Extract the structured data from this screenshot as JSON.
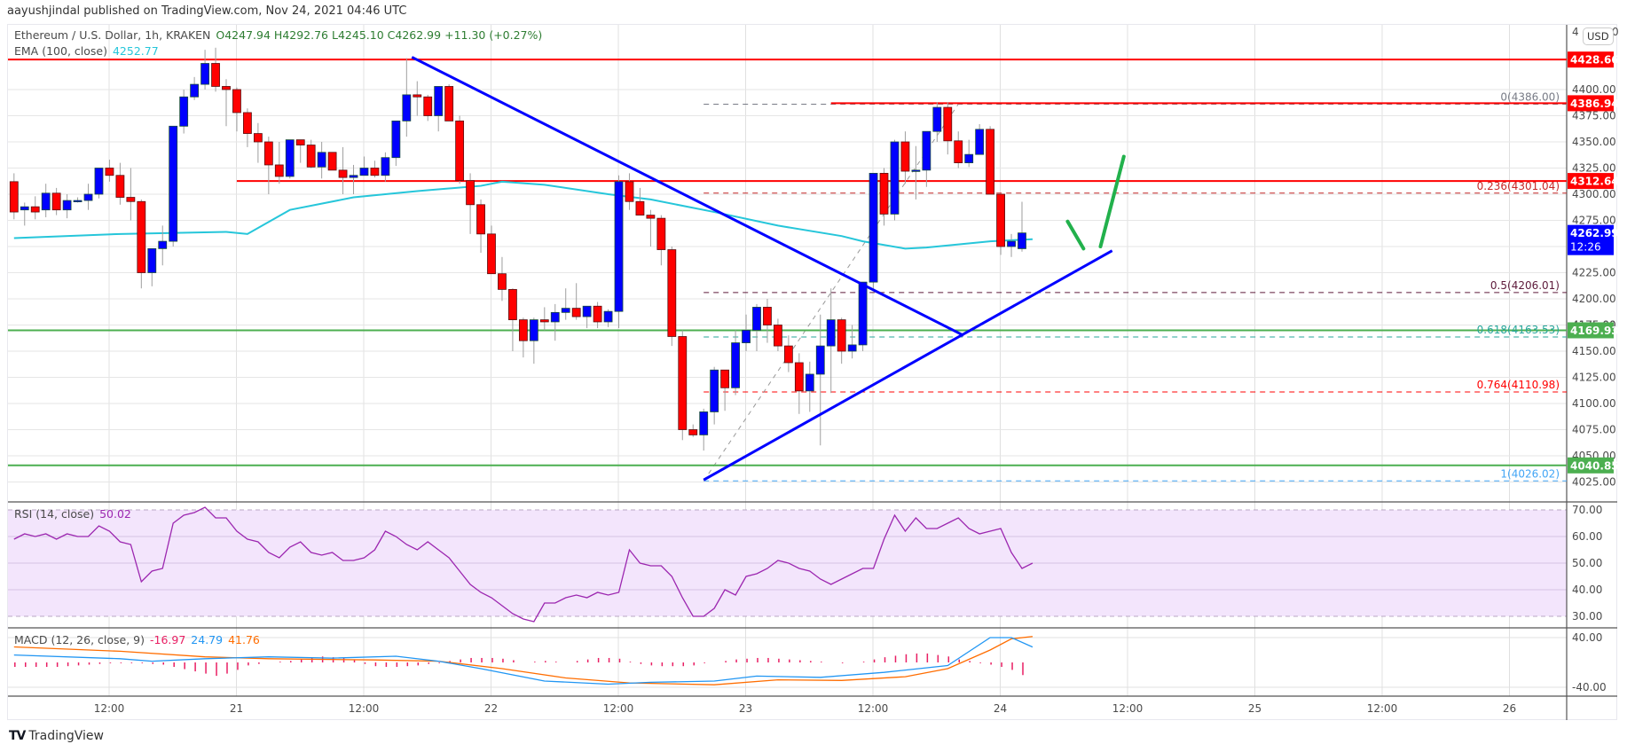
{
  "header": {
    "published": "aayushjindal published on TradingView.com, Nov 24, 2021 04:46 UTC"
  },
  "legend": {
    "symbol": "Ethereum / U.S. Dollar, 1h, KRAKEN",
    "open": "O4247.94",
    "high": "H4292.76",
    "low": "L4245.10",
    "close": "C4262.99",
    "change": "+11.30 (+0.27%)",
    "ema_label": "EMA (100, close)",
    "ema_value": "4252.77",
    "rsi_label": "RSI (14, close)",
    "rsi_value": "50.02",
    "macd_label": "MACD (12, 26, close, 9)",
    "macd_hist": "-16.97",
    "macd_line": "24.79",
    "macd_signal": "41.76"
  },
  "price_axis": {
    "currency_button": "USD",
    "currency_prefix": "4",
    "currency_suffix": "0",
    "ticks": [
      "4400.00",
      "4375.00",
      "4350.00",
      "4325.00",
      "4300.00",
      "4275.00",
      "4225.00",
      "4200.00",
      "4175.00",
      "4150.00",
      "4125.00",
      "4100.00",
      "4075.00",
      "4050.00",
      "4025.00"
    ],
    "tick_values": [
      4400,
      4375,
      4350,
      4325,
      4300,
      4275,
      4225,
      4200,
      4175,
      4150,
      4125,
      4100,
      4075,
      4050,
      4025
    ],
    "current_price": "4262.99",
    "countdown": "12:26",
    "rsi_ticks": [
      "70.00",
      "60.00",
      "50.00",
      "40.00",
      "30.00"
    ],
    "macd_ticks": [
      "40.00",
      "-40.00"
    ]
  },
  "time_axis": {
    "labels": [
      "12:00",
      "21",
      "12:00",
      "22",
      "12:00",
      "23",
      "12:00",
      "24",
      "12:00",
      "25",
      "12:00",
      "26"
    ]
  },
  "footer": {
    "brand": "TradingView",
    "logo": "TV"
  },
  "colors": {
    "up": "#0000ff",
    "down": "#ff0000",
    "ema": "#26c6da",
    "rsi": "#9c27b0",
    "rsi_band": "#f3e5fc",
    "macd_line": "#2196f3",
    "macd_signal": "#ff6d00",
    "macd_hist": "#e91e63",
    "resistance": "#ff0000",
    "support": "#4caf50",
    "trendline": "#0000ff",
    "annotation": "#22b14c"
  },
  "chart_data": {
    "type": "candlestick",
    "title": "Ethereum / U.S. Dollar, 1h, KRAKEN",
    "xlabel": "",
    "ylabel": "USD",
    "ylim": [
      4005,
      4455
    ],
    "x_start": "Nov 20 03:00",
    "interval": "1h",
    "time_labels": [
      "Nov 20 12:00",
      "21",
      "12:00",
      "22",
      "12:00",
      "23",
      "12:00",
      "24",
      "12:00",
      "25",
      "12:00",
      "26"
    ],
    "ohlc": [
      [
        4312,
        4320,
        4276,
        4283
      ],
      [
        4285,
        4292,
        4270,
        4288
      ],
      [
        4288,
        4298,
        4276,
        4283
      ],
      [
        4285,
        4310,
        4278,
        4301
      ],
      [
        4301,
        4306,
        4280,
        4285
      ],
      [
        4285,
        4300,
        4277,
        4294
      ],
      [
        4294,
        4297,
        4292,
        4294
      ],
      [
        4294,
        4310,
        4285,
        4300
      ],
      [
        4300,
        4325,
        4296,
        4325
      ],
      [
        4325,
        4333,
        4312,
        4318
      ],
      [
        4318,
        4330,
        4290,
        4297
      ],
      [
        4297,
        4325,
        4275,
        4293
      ],
      [
        4293,
        4295,
        4210,
        4225
      ],
      [
        4225,
        4245,
        4212,
        4248
      ],
      [
        4248,
        4270,
        4232,
        4255
      ],
      [
        4255,
        4360,
        4250,
        4365
      ],
      [
        4365,
        4400,
        4358,
        4393
      ],
      [
        4393,
        4412,
        4390,
        4405
      ],
      [
        4405,
        4438,
        4400,
        4425
      ],
      [
        4425,
        4440,
        4398,
        4403
      ],
      [
        4403,
        4410,
        4365,
        4400
      ],
      [
        4400,
        4402,
        4360,
        4378
      ],
      [
        4378,
        4382,
        4345,
        4358
      ],
      [
        4358,
        4368,
        4330,
        4350
      ],
      [
        4350,
        4355,
        4300,
        4328
      ],
      [
        4328,
        4350,
        4310,
        4317
      ],
      [
        4317,
        4350,
        4315,
        4352
      ],
      [
        4352,
        4352,
        4330,
        4347
      ],
      [
        4347,
        4352,
        4325,
        4326
      ],
      [
        4326,
        4350,
        4315,
        4340
      ],
      [
        4340,
        4340,
        4324,
        4323
      ],
      [
        4323,
        4345,
        4300,
        4316
      ],
      [
        4316,
        4328,
        4300,
        4318
      ],
      [
        4318,
        4336,
        4318,
        4325
      ],
      [
        4325,
        4332,
        4316,
        4318
      ],
      [
        4318,
        4340,
        4312,
        4335
      ],
      [
        4335,
        4368,
        4327,
        4370
      ],
      [
        4370,
        4430,
        4355,
        4395
      ],
      [
        4395,
        4408,
        4375,
        4393
      ],
      [
        4393,
        4395,
        4370,
        4375
      ],
      [
        4375,
        4400,
        4360,
        4403
      ],
      [
        4403,
        4405,
        4380,
        4370
      ],
      [
        4370,
        4375,
        4310,
        4313
      ],
      [
        4313,
        4320,
        4262,
        4290
      ],
      [
        4290,
        4295,
        4244,
        4262
      ],
      [
        4262,
        4270,
        4228,
        4224
      ],
      [
        4224,
        4240,
        4198,
        4209
      ],
      [
        4209,
        4210,
        4150,
        4180
      ],
      [
        4180,
        4182,
        4144,
        4160
      ],
      [
        4160,
        4182,
        4138,
        4180
      ],
      [
        4180,
        4192,
        4170,
        4178
      ],
      [
        4178,
        4195,
        4160,
        4187
      ],
      [
        4187,
        4210,
        4180,
        4191
      ],
      [
        4191,
        4215,
        4180,
        4183
      ],
      [
        4183,
        4190,
        4172,
        4193
      ],
      [
        4193,
        4197,
        4172,
        4178
      ],
      [
        4178,
        4190,
        4173,
        4188
      ],
      [
        4188,
        4318,
        4172,
        4312
      ],
      [
        4312,
        4320,
        4285,
        4293
      ],
      [
        4293,
        4306,
        4280,
        4280
      ],
      [
        4280,
        4285,
        4250,
        4277
      ],
      [
        4277,
        4280,
        4232,
        4247
      ],
      [
        4247,
        4250,
        4155,
        4164
      ],
      [
        4164,
        4170,
        4065,
        4075
      ],
      [
        4075,
        4080,
        4068,
        4070
      ],
      [
        4070,
        4095,
        4055,
        4092
      ],
      [
        4092,
        4135,
        4080,
        4132
      ],
      [
        4132,
        4132,
        4093,
        4115
      ],
      [
        4115,
        4170,
        4108,
        4158
      ],
      [
        4158,
        4185,
        4150,
        4170
      ],
      [
        4170,
        4195,
        4150,
        4192
      ],
      [
        4192,
        4200,
        4158,
        4175
      ],
      [
        4175,
        4181,
        4150,
        4155
      ],
      [
        4155,
        4165,
        4130,
        4139
      ],
      [
        4139,
        4148,
        4090,
        4112
      ],
      [
        4112,
        4140,
        4092,
        4128
      ],
      [
        4128,
        4185,
        4060,
        4155
      ],
      [
        4155,
        4210,
        4110,
        4180
      ],
      [
        4180,
        4182,
        4138,
        4150
      ],
      [
        4150,
        4175,
        4143,
        4156
      ],
      [
        4156,
        4200,
        4150,
        4216
      ],
      [
        4216,
        4318,
        4208,
        4320
      ],
      [
        4320,
        4325,
        4270,
        4281
      ],
      [
        4281,
        4352,
        4275,
        4350
      ],
      [
        4350,
        4360,
        4310,
        4322
      ],
      [
        4322,
        4346,
        4295,
        4323
      ],
      [
        4323,
        4350,
        4307,
        4360
      ],
      [
        4360,
        4388,
        4350,
        4383
      ],
      [
        4383,
        4388,
        4338,
        4351
      ],
      [
        4351,
        4360,
        4325,
        4330
      ],
      [
        4330,
        4352,
        4326,
        4338
      ],
      [
        4338,
        4367,
        4340,
        4362
      ],
      [
        4362,
        4365,
        4300,
        4300
      ],
      [
        4300,
        4298,
        4242,
        4250
      ],
      [
        4250,
        4262,
        4240,
        4255
      ],
      [
        4247.94,
        4292.76,
        4245.1,
        4262.99
      ]
    ],
    "ema100": [
      [
        0,
        4258
      ],
      [
        10,
        4262
      ],
      [
        20,
        4264
      ],
      [
        22,
        4262
      ],
      [
        26,
        4285
      ],
      [
        32,
        4297
      ],
      [
        38,
        4303
      ],
      [
        44,
        4308
      ],
      [
        46,
        4312
      ],
      [
        50,
        4309
      ],
      [
        56,
        4300
      ],
      [
        60,
        4295
      ],
      [
        66,
        4283
      ],
      [
        72,
        4270
      ],
      [
        78,
        4260
      ],
      [
        80,
        4255
      ],
      [
        84,
        4248
      ],
      [
        86,
        4249
      ],
      [
        92,
        4255
      ],
      [
        94,
        4256
      ],
      [
        96,
        4257
      ]
    ],
    "rsi": [
      [
        0,
        59
      ],
      [
        1,
        61
      ],
      [
        2,
        60
      ],
      [
        3,
        61
      ],
      [
        4,
        59
      ],
      [
        5,
        61
      ],
      [
        6,
        60
      ],
      [
        7,
        60
      ],
      [
        8,
        64
      ],
      [
        9,
        62
      ],
      [
        10,
        58
      ],
      [
        11,
        57
      ],
      [
        12,
        43
      ],
      [
        13,
        47
      ],
      [
        14,
        48
      ],
      [
        15,
        65
      ],
      [
        16,
        68
      ],
      [
        17,
        69
      ],
      [
        18,
        71
      ],
      [
        19,
        67
      ],
      [
        20,
        67
      ],
      [
        21,
        62
      ],
      [
        22,
        59
      ],
      [
        23,
        58
      ],
      [
        24,
        54
      ],
      [
        25,
        52
      ],
      [
        26,
        56
      ],
      [
        27,
        58
      ],
      [
        28,
        54
      ],
      [
        29,
        53
      ],
      [
        30,
        54
      ],
      [
        31,
        51
      ],
      [
        32,
        51
      ],
      [
        33,
        52
      ],
      [
        34,
        55
      ],
      [
        35,
        62
      ],
      [
        36,
        60
      ],
      [
        37,
        57
      ],
      [
        38,
        55
      ],
      [
        39,
        58
      ],
      [
        40,
        55
      ],
      [
        41,
        52
      ],
      [
        42,
        47
      ],
      [
        43,
        42
      ],
      [
        44,
        39
      ],
      [
        45,
        37
      ],
      [
        46,
        34
      ],
      [
        47,
        31
      ],
      [
        48,
        29
      ],
      [
        49,
        28
      ],
      [
        50,
        35
      ],
      [
        51,
        35
      ],
      [
        52,
        37
      ],
      [
        53,
        38
      ],
      [
        54,
        37
      ],
      [
        55,
        39
      ],
      [
        56,
        38
      ],
      [
        57,
        39
      ],
      [
        58,
        55
      ],
      [
        59,
        50
      ],
      [
        60,
        49
      ],
      [
        61,
        49
      ],
      [
        62,
        45
      ],
      [
        63,
        37
      ],
      [
        64,
        30
      ],
      [
        65,
        30
      ],
      [
        66,
        33
      ],
      [
        67,
        40
      ],
      [
        68,
        38
      ],
      [
        69,
        45
      ],
      [
        70,
        46
      ],
      [
        71,
        48
      ],
      [
        72,
        51
      ],
      [
        73,
        50
      ],
      [
        74,
        48
      ],
      [
        75,
        47
      ],
      [
        76,
        44
      ],
      [
        77,
        42
      ],
      [
        78,
        44
      ],
      [
        79,
        46
      ],
      [
        80,
        48
      ],
      [
        81,
        48
      ],
      [
        82,
        59
      ],
      [
        83,
        68
      ],
      [
        84,
        62
      ],
      [
        85,
        67
      ],
      [
        86,
        63
      ],
      [
        87,
        63
      ],
      [
        88,
        65
      ],
      [
        89,
        67
      ],
      [
        90,
        63
      ],
      [
        91,
        61
      ],
      [
        92,
        62
      ],
      [
        93,
        63
      ],
      [
        94,
        54
      ],
      [
        95,
        48
      ],
      [
        96,
        50
      ]
    ],
    "macd": [
      [
        0,
        12
      ],
      [
        10,
        6
      ],
      [
        13,
        2
      ],
      [
        18,
        6
      ],
      [
        24,
        9
      ],
      [
        30,
        7
      ],
      [
        36,
        10
      ],
      [
        40,
        2
      ],
      [
        44,
        -10
      ],
      [
        50,
        -30
      ],
      [
        56,
        -35
      ],
      [
        60,
        -32
      ],
      [
        66,
        -30
      ],
      [
        70,
        -22
      ],
      [
        76,
        -24
      ],
      [
        82,
        -16
      ],
      [
        88,
        -5
      ],
      [
        92,
        40
      ],
      [
        94,
        40
      ],
      [
        96,
        24.79
      ]
    ],
    "macd_signal": [
      [
        0,
        25
      ],
      [
        10,
        18
      ],
      [
        18,
        9
      ],
      [
        24,
        6
      ],
      [
        34,
        4
      ],
      [
        40,
        2
      ],
      [
        46,
        -10
      ],
      [
        52,
        -25
      ],
      [
        58,
        -33
      ],
      [
        66,
        -36
      ],
      [
        72,
        -28
      ],
      [
        78,
        -29
      ],
      [
        84,
        -23
      ],
      [
        88,
        -10
      ],
      [
        92,
        20
      ],
      [
        94,
        38
      ],
      [
        96,
        41.76
      ]
    ],
    "macd_hist": [
      -6,
      -6,
      -6,
      -6,
      -6,
      -5,
      -4,
      -3,
      -2,
      -1,
      -1,
      -1,
      -1,
      -2,
      -3,
      -6,
      -9,
      -12,
      -15,
      -18,
      -15,
      -10,
      -4,
      -2,
      0,
      1,
      2,
      4,
      6,
      8,
      7,
      6,
      3,
      -2,
      -5,
      -6,
      -6,
      -5,
      -4,
      -2,
      -1,
      2,
      4,
      6,
      6,
      6,
      5,
      3,
      0,
      1,
      2,
      1,
      0,
      2,
      4,
      6,
      6,
      5,
      1,
      -2,
      -4,
      -5,
      -5,
      -5,
      -4,
      -1,
      0,
      2,
      4,
      5,
      6,
      6,
      5,
      4,
      3,
      2,
      1,
      0,
      -1,
      0,
      1,
      4,
      7,
      9,
      11,
      12,
      12,
      10,
      8,
      4,
      2,
      -1,
      -3,
      -6,
      -10,
      -16.97
    ],
    "horizontal_lines": [
      {
        "price": 4428.66,
        "label": "4428.66",
        "color": "#ff0000",
        "x_start_index": 0
      },
      {
        "price": 4386.94,
        "label": "4386.94",
        "color": "#ff0000",
        "x_start_index": 77
      },
      {
        "price": 4312.64,
        "label": "4312.64",
        "color": "#ff0000",
        "x_start_index": 21
      },
      {
        "price": 4169.93,
        "label": "4169.93",
        "color": "#4caf50",
        "x_start_index": 0
      },
      {
        "price": 4040.85,
        "label": "4040.85",
        "color": "#4caf50",
        "x_start_index": 0
      }
    ],
    "fibonacci": [
      {
        "level": "0",
        "price": 4386.0,
        "label": "0(4386.00)",
        "color": "#787b86"
      },
      {
        "level": "0.236",
        "price": 4301.04,
        "label": "0.236(4301.04)",
        "color": "#c62828"
      },
      {
        "level": "0.5",
        "price": 4206.01,
        "label": "0.5(4206.01)",
        "color": "#5d1a3a"
      },
      {
        "level": "0.618",
        "price": 4163.53,
        "label": "0.618(4163.53)",
        "color": "#26a69a"
      },
      {
        "level": "0.764",
        "price": 4110.98,
        "label": "0.764(4110.98)",
        "color": "#ff0000"
      },
      {
        "level": "1",
        "price": 4026.02,
        "label": "1(4026.02)",
        "color": "#42a5f5"
      }
    ],
    "fib_start_index": 65,
    "trendlines": [
      {
        "name": "bearish-trendline",
        "from": [
          37.5,
          4431
        ],
        "to": [
          89.5,
          4165
        ]
      },
      {
        "name": "bullish-trendline",
        "from": [
          65,
          4027
        ],
        "to": [
          103.5,
          4246
        ]
      }
    ],
    "annotations": [
      {
        "name": "dip-stroke",
        "from": [
          99.3,
          4274
        ],
        "to": [
          100.8,
          4248
        ]
      },
      {
        "name": "rise-stroke",
        "from": [
          102.4,
          4250
        ],
        "to": [
          104.6,
          4336
        ]
      }
    ]
  }
}
